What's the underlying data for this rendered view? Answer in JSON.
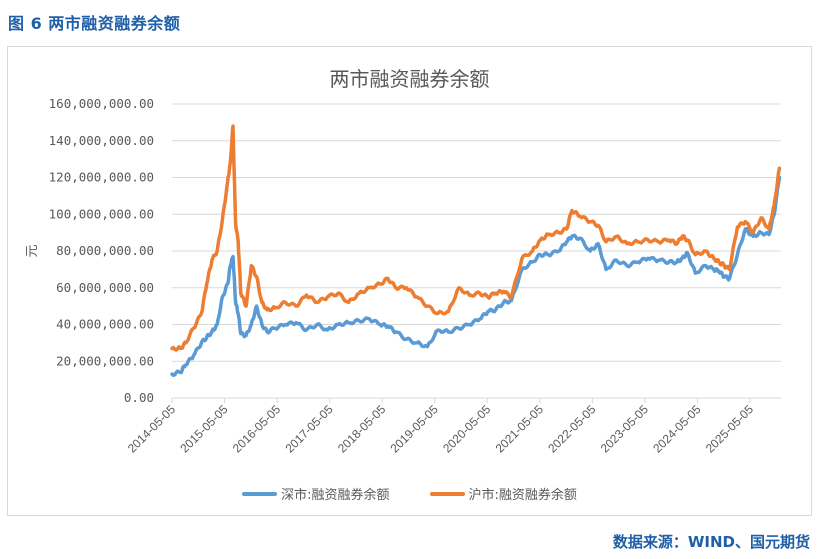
{
  "caption": "图 6  两市融资融券余额",
  "source": "数据来源：WIND、国元期货",
  "colors": {
    "shenzhen": "#5b9bd5",
    "shanghai": "#ed7d31",
    "grid": "#d9d9d9",
    "text": "#595959",
    "accent": "#1f5fa8"
  },
  "chart_data": {
    "type": "line",
    "title": "两市融资融券余额",
    "xlabel": "",
    "ylabel": "元",
    "ylim": [
      0,
      160000000
    ],
    "yticks": [
      "0.00",
      "20,000,000.00",
      "40,000,000.00",
      "60,000,000.00",
      "80,000,000.00",
      "100,000,000.00",
      "120,000,000.00",
      "140,000,000.00",
      "160,000,000.00"
    ],
    "xticks": [
      "2014-05-05",
      "2015-05-05",
      "2016-05-05",
      "2017-05-05",
      "2018-05-05",
      "2019-05-05",
      "2020-05-05",
      "2021-05-05",
      "2022-05-05",
      "2023-05-05",
      "2024-05-05",
      "2025-05-05"
    ],
    "grid": true,
    "legend_position": "bottom",
    "x": [
      2014.34,
      2014.5,
      2014.6,
      2014.75,
      2014.9,
      2015.0,
      2015.1,
      2015.2,
      2015.3,
      2015.4,
      2015.45,
      2015.5,
      2015.55,
      2015.6,
      2015.65,
      2015.75,
      2015.85,
      2015.95,
      2016.05,
      2016.15,
      2016.3,
      2016.5,
      2016.7,
      2016.9,
      2017.1,
      2017.3,
      2017.5,
      2017.7,
      2017.9,
      2018.1,
      2018.3,
      2018.45,
      2018.6,
      2018.8,
      2019.0,
      2019.2,
      2019.4,
      2019.6,
      2019.8,
      2020.0,
      2020.2,
      2020.35,
      2020.5,
      2020.65,
      2020.8,
      2021.0,
      2021.2,
      2021.35,
      2021.5,
      2021.7,
      2021.85,
      2021.95,
      2022.1,
      2022.3,
      2022.45,
      2022.6,
      2022.8,
      2023.0,
      2023.2,
      2023.4,
      2023.6,
      2023.8,
      2023.95,
      2024.05,
      2024.15,
      2024.3,
      2024.5,
      2024.65,
      2024.75,
      2024.85,
      2024.95,
      2025.1,
      2025.25,
      2025.4,
      2025.55,
      2025.7,
      2025.8,
      2025.9
    ],
    "series": [
      {
        "name": "深市:融资融券余额",
        "color": "#5b9bd5",
        "values": [
          13,
          14,
          18,
          23,
          30,
          33,
          36,
          40,
          55,
          62,
          72,
          77,
          52,
          46,
          35,
          34,
          40,
          50,
          40,
          36,
          38,
          40,
          41,
          37,
          40,
          37,
          40,
          41,
          42,
          43,
          40,
          39,
          36,
          32,
          30,
          28,
          37,
          36,
          38,
          40,
          43,
          47,
          48,
          52,
          53,
          70,
          74,
          78,
          78,
          80,
          85,
          88,
          87,
          80,
          84,
          70,
          75,
          72,
          74,
          76,
          75,
          74,
          74,
          76,
          79,
          68,
          72,
          70,
          69,
          66,
          65,
          78,
          92,
          88,
          90,
          89,
          100,
          120
        ]
      },
      {
        "name": "沪市:融资融券余额",
        "color": "#ed7d31",
        "values": [
          27,
          27,
          30,
          38,
          46,
          62,
          75,
          80,
          97,
          118,
          128,
          148,
          95,
          85,
          57,
          50,
          72,
          66,
          52,
          48,
          49,
          52,
          50,
          56,
          52,
          55,
          57,
          52,
          57,
          60,
          62,
          65,
          60,
          60,
          55,
          50,
          46,
          47,
          60,
          56,
          57,
          55,
          57,
          58,
          55,
          76,
          80,
          86,
          89,
          90,
          92,
          102,
          99,
          96,
          94,
          85,
          88,
          84,
          85,
          86,
          85,
          86,
          84,
          88,
          86,
          78,
          80,
          76,
          74,
          72,
          70,
          93,
          96,
          90,
          98,
          92,
          105,
          125
        ]
      }
    ]
  }
}
